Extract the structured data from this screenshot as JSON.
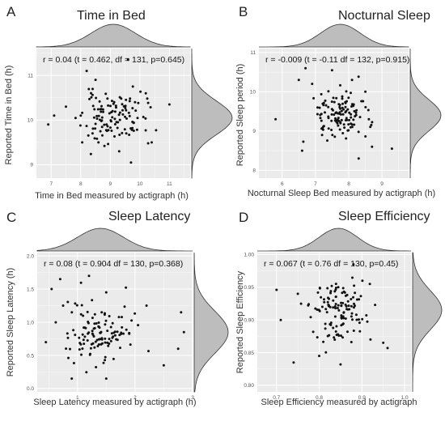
{
  "chart_data": [
    {
      "panel": "A",
      "type": "scatter",
      "title": "Time in Bed",
      "annotation": "r = 0.04 (t = 0.462, df = 131,  p=0.645)",
      "xlabel": "Time in Bed measured by actigraph (h)",
      "ylabel": "Reported Time in Bed (h)",
      "xlim": [
        6.5,
        11.7
      ],
      "ylim": [
        8.7,
        11.6
      ],
      "xticks": [
        7,
        8,
        9,
        10,
        11
      ],
      "yticks": [
        9,
        10,
        11
      ],
      "marginal_x": {
        "mu": 9.1,
        "sd": 0.75
      },
      "marginal_y": {
        "mu": 10.05,
        "sd": 0.38
      },
      "n": 133,
      "seed": 11,
      "points": [
        [
          6.9,
          9.9
        ],
        [
          7.1,
          10.1
        ],
        [
          7.5,
          10.3
        ],
        [
          8.0,
          10.1
        ],
        [
          8.05,
          9.5
        ],
        [
          8.2,
          11.1
        ],
        [
          8.4,
          9.7
        ],
        [
          8.5,
          10.9
        ],
        [
          8.6,
          9.5
        ],
        [
          9.6,
          11.35
        ],
        [
          10.2,
          10.6
        ],
        [
          10.4,
          9.5
        ],
        [
          11.0,
          10.35
        ],
        [
          9.7,
          9.05
        ],
        [
          9.3,
          9.3
        ]
      ]
    },
    {
      "panel": "B",
      "type": "scatter",
      "title": "Nocturnal Sleep",
      "annotation": "r = -0.009 (t = -0.11 df = 132,  p=0.915)",
      "xlabel": "Nocturnal Sleep Bed measured by actigraph (h)",
      "ylabel": "Reported Sleep period (h)",
      "xlim": [
        5.3,
        9.8
      ],
      "ylim": [
        7.8,
        11.1
      ],
      "xticks": [
        6,
        7,
        8,
        9
      ],
      "yticks": [
        8,
        9,
        10,
        11
      ],
      "marginal_x": {
        "mu": 7.75,
        "sd": 0.6
      },
      "marginal_y": {
        "mu": 9.4,
        "sd": 0.4
      },
      "n": 134,
      "seed": 23,
      "points": [
        [
          5.8,
          9.3
        ],
        [
          6.5,
          10.3
        ],
        [
          6.6,
          8.5
        ],
        [
          6.7,
          10.6
        ],
        [
          6.9,
          10.2
        ],
        [
          7.2,
          8.9
        ],
        [
          8.5,
          10.0
        ],
        [
          8.7,
          8.6
        ],
        [
          9.3,
          8.55
        ],
        [
          8.3,
          8.3
        ],
        [
          7.5,
          10.55
        ],
        [
          8.1,
          10.3
        ]
      ]
    },
    {
      "panel": "C",
      "type": "scatter",
      "title": "Sleep Latency",
      "annotation": "r = 0.08 (t = 0.904 df = 130,  p=0.368)",
      "xlabel": "Sleep Latency measured by actigraph (h)",
      "ylabel": "Reported Sleep Latency (h)",
      "xlim": [
        0.3,
        3.0
      ],
      "ylim": [
        -0.05,
        2.05
      ],
      "xticks": [
        1,
        2,
        3
      ],
      "yticks": [
        0.0,
        0.5,
        1.0,
        1.5,
        2.0
      ],
      "marginal_x": {
        "mu": 1.4,
        "sd": 0.4
      },
      "marginal_y": {
        "mu": 0.85,
        "sd": 0.32
      },
      "n": 132,
      "seed": 37,
      "points": [
        [
          0.45,
          0.7
        ],
        [
          0.55,
          1.5
        ],
        [
          0.7,
          1.65
        ],
        [
          0.75,
          1.25
        ],
        [
          0.9,
          0.15
        ],
        [
          1.2,
          1.7
        ],
        [
          1.5,
          0.15
        ],
        [
          1.5,
          1.45
        ],
        [
          2.2,
          1.25
        ],
        [
          2.5,
          0.35
        ],
        [
          2.8,
          1.15
        ],
        [
          2.85,
          0.85
        ],
        [
          2.75,
          0.6
        ]
      ]
    },
    {
      "panel": "D",
      "type": "scatter",
      "title": "Sleep Efficiency",
      "annotation": "r = 0.067 (t = 0.76 df = 130,  p=0.45)",
      "xlabel": "Sleep Efficiency measured by actigraph",
      "ylabel": "Reported Sleep Efficiency",
      "xlim": [
        0.655,
        1.015
      ],
      "ylim": [
        0.79,
        1.003
      ],
      "xticks": [
        0.7,
        0.8,
        0.9,
        1.0
      ],
      "yticks": [
        0.8,
        0.85,
        0.9,
        0.95,
        1.0
      ],
      "marginal_x": {
        "mu": 0.845,
        "sd": 0.045
      },
      "marginal_y": {
        "mu": 0.915,
        "sd": 0.03
      },
      "n": 132,
      "seed": 53,
      "points": [
        [
          0.7,
          0.946
        ],
        [
          0.71,
          0.9
        ],
        [
          0.74,
          0.835
        ],
        [
          0.75,
          0.94
        ],
        [
          0.8,
          0.845
        ],
        [
          0.85,
          0.832
        ],
        [
          0.92,
          0.87
        ],
        [
          0.95,
          0.865
        ],
        [
          0.96,
          0.857
        ],
        [
          0.88,
          0.985
        ]
      ]
    }
  ]
}
